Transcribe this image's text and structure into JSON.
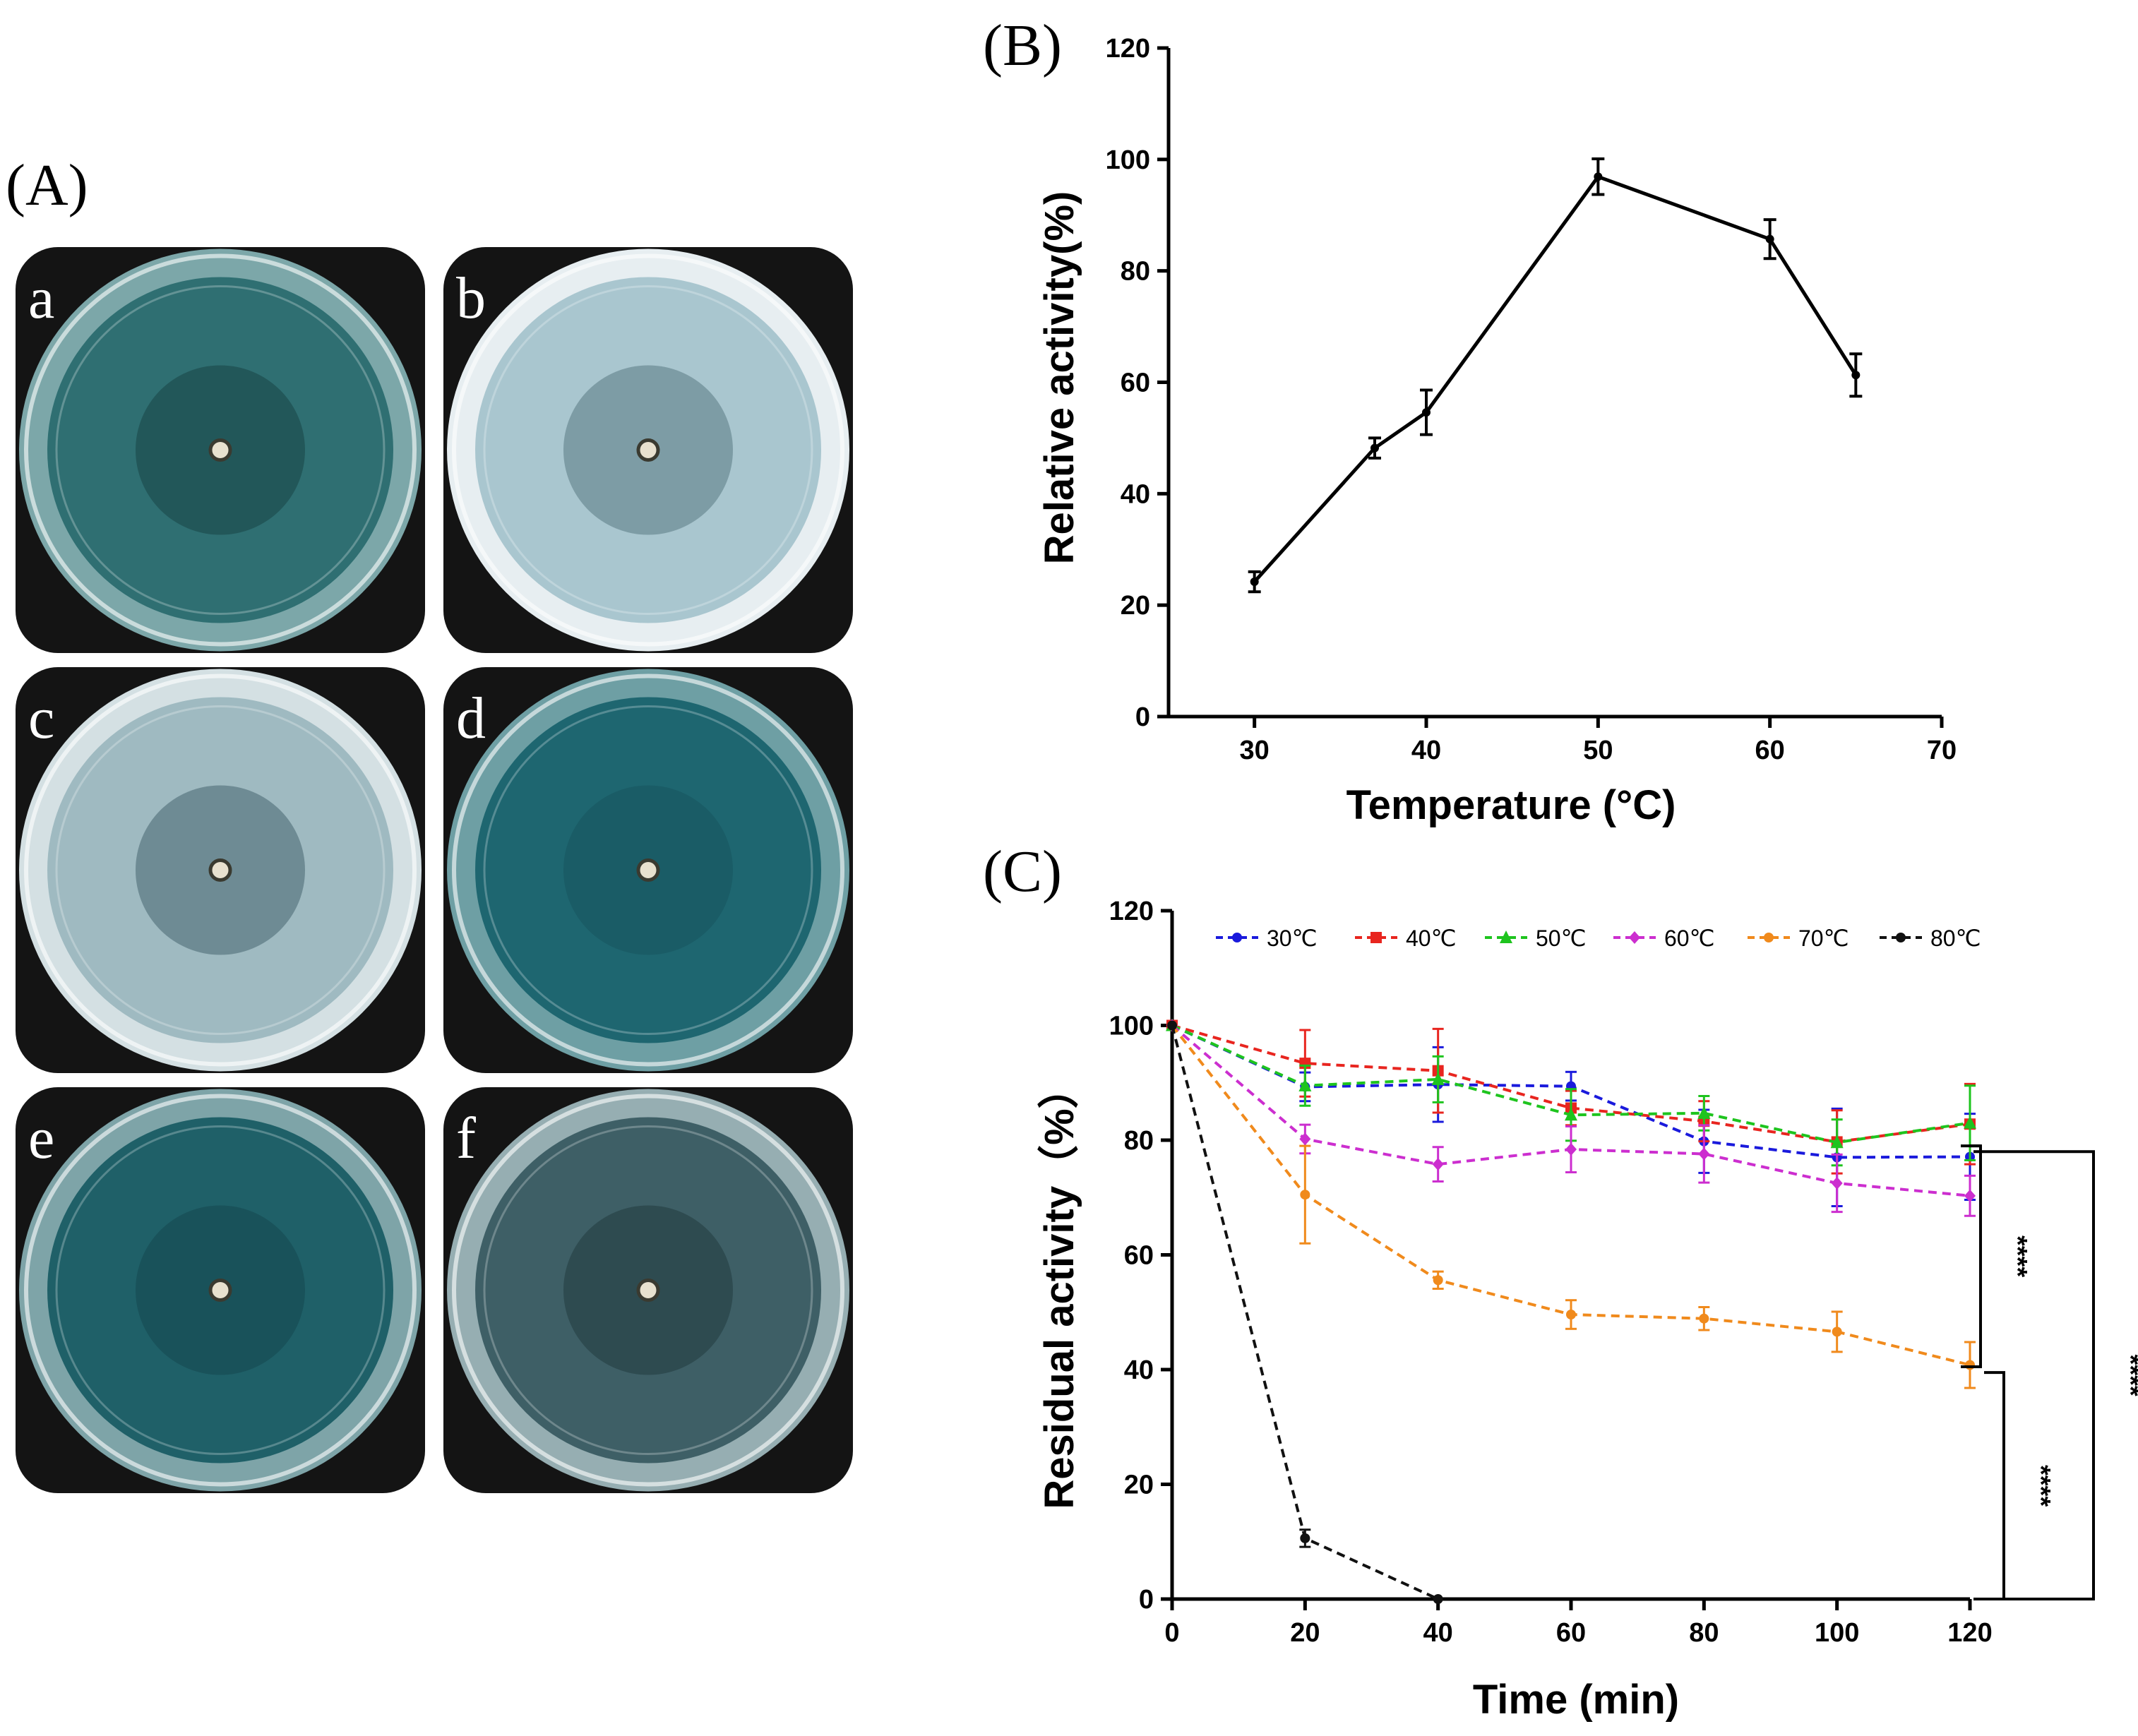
{
  "panels": {
    "a": "(A)",
    "b": "(B)",
    "c": "(C)"
  },
  "plates": [
    {
      "letter": "a",
      "medium": "#2f6f72",
      "halo": "#1f4f52",
      "frame": "#7ca7a9"
    },
    {
      "letter": "b",
      "medium": "#a9c6cf",
      "halo": "#6f8e97",
      "frame": "#e7eef1"
    },
    {
      "letter": "c",
      "medium": "#9fbac1",
      "halo": "#5d7b84",
      "frame": "#d4e0e3"
    },
    {
      "letter": "d",
      "medium": "#1e6670",
      "halo": "#1a5a63",
      "frame": "#6e9fa4"
    },
    {
      "letter": "e",
      "medium": "#1f6068",
      "halo": "#184e55",
      "frame": "#7ea4a8"
    },
    {
      "letter": "f",
      "medium": "#3e5f66",
      "halo": "#2a4449",
      "frame": "#96aeb2"
    }
  ],
  "chart_data": [
    {
      "type": "line",
      "panel": "B",
      "xlabel": "Temperature (°C)",
      "ylabel": "Relative activity(%)",
      "xlim": [
        25,
        70
      ],
      "ylim": [
        0,
        120
      ],
      "xticks": [
        30,
        40,
        50,
        60,
        70
      ],
      "yticks": [
        0,
        20,
        40,
        60,
        80,
        100,
        120
      ],
      "series": [
        {
          "name": "Relative activity",
          "color": "#000000",
          "x": [
            30,
            37,
            40,
            50,
            60,
            65
          ],
          "y": [
            24.2,
            48.2,
            54.6,
            96.9,
            85.7,
            61.3
          ],
          "err": [
            1.8,
            1.8,
            4.0,
            3.2,
            3.5,
            3.8
          ]
        }
      ]
    },
    {
      "type": "line",
      "panel": "C",
      "xlabel": "Time (min)",
      "ylabel": "Residual activity（%）",
      "xlim": [
        0,
        120
      ],
      "ylim": [
        0,
        120
      ],
      "xticks": [
        0,
        20,
        40,
        60,
        80,
        100,
        120
      ],
      "yticks": [
        0,
        20,
        40,
        60,
        80,
        100,
        120
      ],
      "legend_position": "top",
      "series": [
        {
          "name": "30℃",
          "color": "#1a1adc",
          "marker": "circle",
          "x": [
            0,
            20,
            40,
            60,
            80,
            100,
            120
          ],
          "y": [
            100,
            89.3,
            89.7,
            89.4,
            79.8,
            77.0,
            77.1
          ],
          "err": [
            0,
            2.5,
            6.5,
            2.5,
            5.5,
            8.5,
            7.5
          ]
        },
        {
          "name": "40℃",
          "color": "#e8251f",
          "marker": "square",
          "x": [
            0,
            20,
            40,
            60,
            80,
            100,
            120
          ],
          "y": [
            100,
            93.4,
            92.1,
            85.6,
            83.3,
            79.7,
            82.8
          ],
          "err": [
            0,
            5.8,
            7.3,
            3.0,
            3.5,
            5.5,
            7.0
          ]
        },
        {
          "name": "50℃",
          "color": "#1ec41e",
          "marker": "triangle",
          "x": [
            0,
            20,
            40,
            60,
            80,
            100,
            120
          ],
          "y": [
            100,
            89.5,
            90.6,
            84.4,
            84.7,
            79.6,
            83.0
          ],
          "err": [
            0,
            3.5,
            4.0,
            4.5,
            3.0,
            4.0,
            6.5
          ]
        },
        {
          "name": "60℃",
          "color": "#cc2ecf",
          "marker": "diamond",
          "x": [
            0,
            20,
            40,
            60,
            80,
            100,
            120
          ],
          "y": [
            100,
            80.2,
            75.8,
            78.4,
            77.6,
            72.5,
            70.3
          ],
          "err": [
            0,
            2.5,
            3.0,
            4.0,
            5.0,
            5.0,
            3.5
          ]
        },
        {
          "name": "70℃",
          "color": "#f08a1c",
          "marker": "circle",
          "x": [
            0,
            20,
            40,
            60,
            80,
            100,
            120
          ],
          "y": [
            100,
            70.5,
            55.6,
            49.6,
            48.9,
            46.6,
            40.8
          ],
          "err": [
            0,
            8.5,
            1.5,
            2.5,
            2.0,
            3.5,
            4.0
          ]
        },
        {
          "name": "80℃",
          "color": "#111111",
          "marker": "circle",
          "x": [
            0,
            20,
            40
          ],
          "y": [
            100,
            10.6,
            0
          ],
          "err": [
            0,
            1.5,
            0
          ]
        }
      ],
      "significance": [
        {
          "label": "****",
          "from": 40.5,
          "to": 79
        },
        {
          "label": "****",
          "from": 0,
          "to": 39.5
        },
        {
          "label": "****",
          "from": 0,
          "to": 78
        }
      ]
    }
  ]
}
